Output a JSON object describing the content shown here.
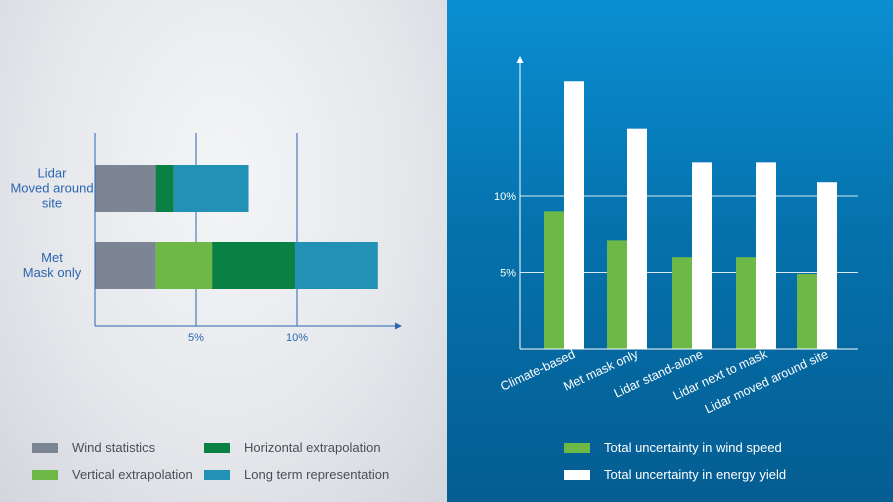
{
  "colors": {
    "wind_statistics": "#7b8593",
    "vertical_extrapolation": "#6db846",
    "horizontal_extrapolation": "#0a8144",
    "long_term_representation": "#2390b6",
    "total_wind_speed": "#6db846",
    "total_energy_yield": "#ffffff",
    "axis_left": "#2b66b0",
    "label_left": "#2b66b0"
  },
  "chart_data": [
    {
      "type": "bar",
      "orientation": "horizontal",
      "stacked": true,
      "categories": [
        [
          "Lidar",
          "Moved around",
          "site"
        ],
        [
          "Met",
          "Mask only"
        ]
      ],
      "series": [
        {
          "name": "Wind statistics",
          "values": [
            3.0,
            3.0
          ]
        },
        {
          "name": "Vertical extrapolation",
          "values": [
            0,
            2.8
          ]
        },
        {
          "name": "Horizontal extrapolation",
          "values": [
            0.9,
            4.1
          ]
        },
        {
          "name": "Long term representation",
          "values": [
            3.7,
            4.1
          ]
        }
      ],
      "xticks": [
        "5%",
        "10%"
      ],
      "xtick_values": [
        5,
        10
      ],
      "xlim": [
        0,
        15.2
      ],
      "grid": true,
      "legend": "bottom"
    },
    {
      "type": "bar",
      "categories": [
        "Climate-based",
        "Met mask only",
        "Lidar stand-alone",
        "Lidar next to mask",
        "Lidar moved around site"
      ],
      "series": [
        {
          "name": "Total uncertainty in wind speed",
          "values": [
            9.0,
            7.1,
            6.0,
            6.0,
            4.9
          ]
        },
        {
          "name": "Total uncertainty in energy yield",
          "values": [
            17.5,
            14.4,
            12.2,
            12.2,
            10.9
          ]
        }
      ],
      "yticks": [
        "5%",
        "10%"
      ],
      "ytick_values": [
        5,
        10
      ],
      "ylim": [
        0,
        19.2
      ],
      "grid": true,
      "legend": "bottom"
    }
  ]
}
